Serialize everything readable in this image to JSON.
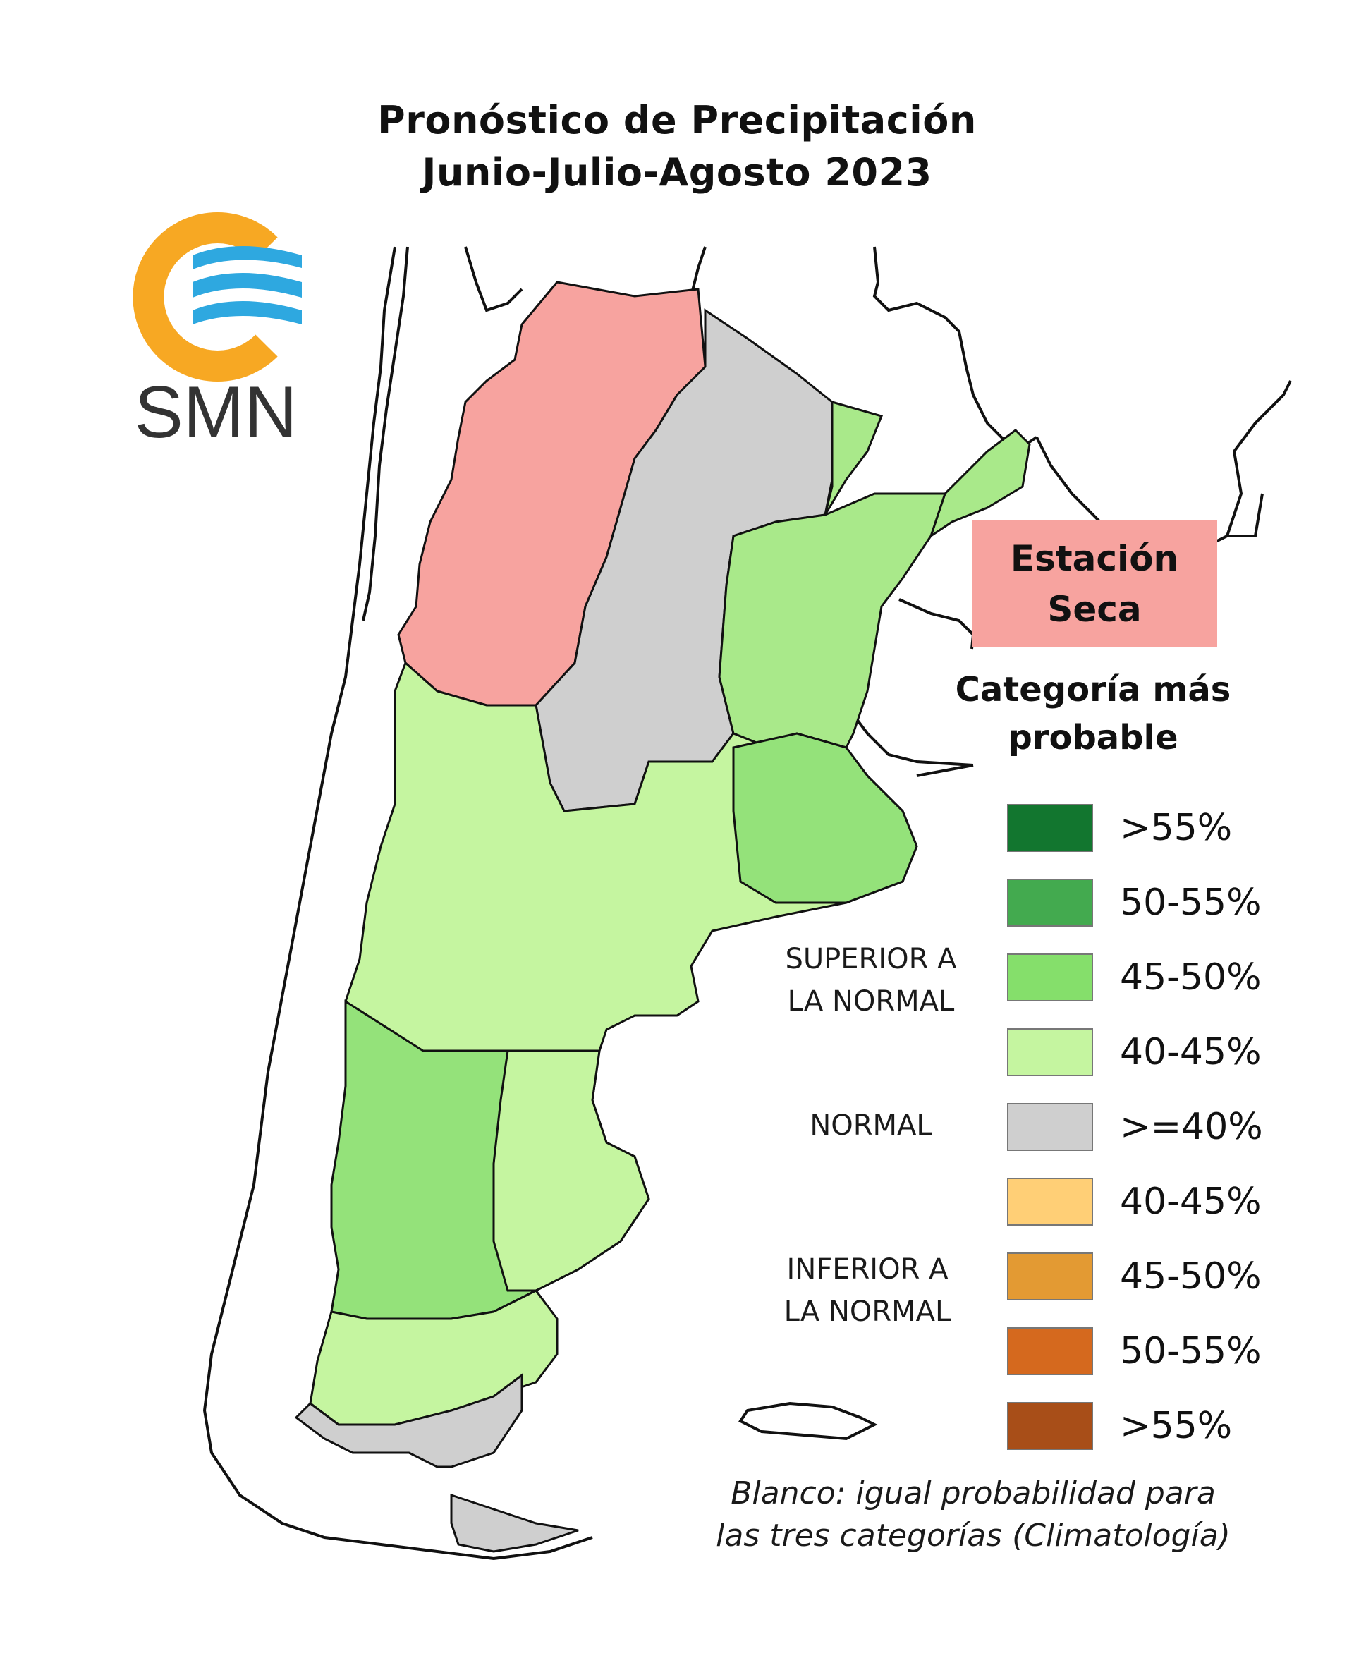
{
  "title": {
    "line1": "Pronóstico de Precipitación",
    "line2": "Junio-Julio-Agosto 2023"
  },
  "logo": {
    "text": "SMN",
    "colors": {
      "ring": "#f7a823",
      "waves": "#2ea8e0",
      "text": "#333333"
    }
  },
  "dry_season": {
    "line1": "Estación",
    "line2": "Seca",
    "color": "#f7a39f"
  },
  "legend": {
    "title_line1": "Categoría más",
    "title_line2": "probable",
    "groups": [
      {
        "line1": "SUPERIOR A",
        "line2": "LA NORMAL"
      },
      {
        "line1": "NORMAL",
        "line2": ""
      },
      {
        "line1": "INFERIOR A",
        "line2": "LA NORMAL"
      }
    ],
    "items": [
      {
        "label": ">55%",
        "color": "#12762f"
      },
      {
        "label": "50-55%",
        "color": "#43aa4f"
      },
      {
        "label": "45-50%",
        "color": "#85df6b"
      },
      {
        "label": "40-45%",
        "color": "#c5f5a0"
      },
      {
        "label": ">=40%",
        "color": "#cfcfcf"
      },
      {
        "label": "40-45%",
        "color": "#ffcf76"
      },
      {
        "label": "45-50%",
        "color": "#e39a33"
      },
      {
        "label": "50-55%",
        "color": "#d5691e"
      },
      {
        "label": ">55%",
        "color": "#a84e18"
      }
    ]
  },
  "footnote": {
    "line1": "Blanco: igual probabilidad para",
    "line2": "las tres categorías (Climatología)"
  }
}
